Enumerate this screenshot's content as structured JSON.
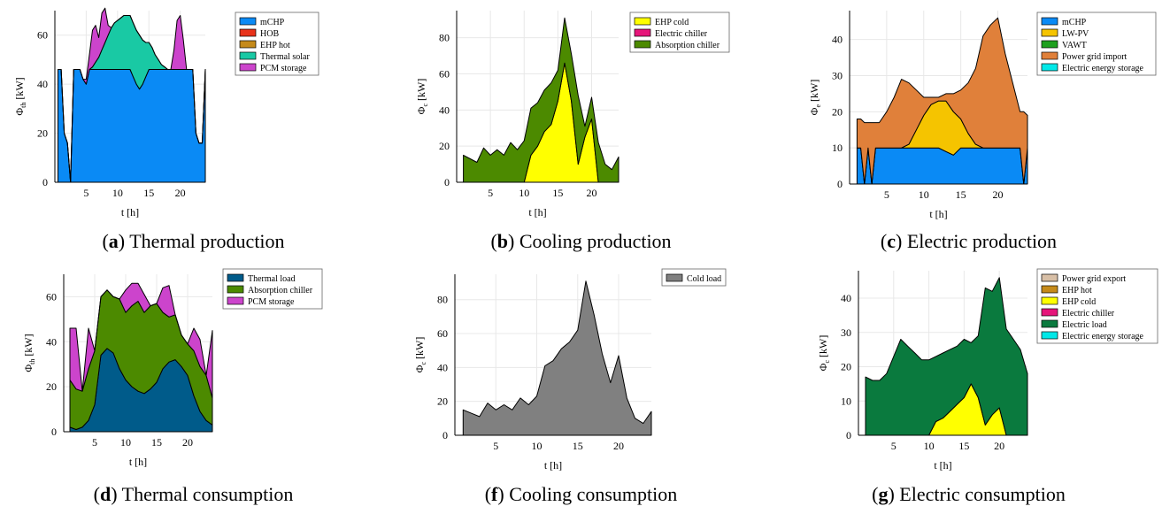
{
  "chart_data": [
    {
      "id": "a",
      "type": "area",
      "stacked": true,
      "caption_letter": "a",
      "caption_text": "Thermal production",
      "xlabel": "t [h]",
      "ylabel_main": "Φ",
      "ylabel_sub": "th",
      "ylabel_unit": "[kW]",
      "xlim": [
        0,
        24
      ],
      "ylim": [
        0,
        70
      ],
      "xticks": [
        "5",
        "10",
        "15",
        "20"
      ],
      "yticks": [
        "0",
        "20",
        "40",
        "60"
      ],
      "grid": true,
      "legend_position": "top-right",
      "x": [
        0.5,
        1,
        1.5,
        2,
        2.5,
        3,
        3.5,
        4,
        4.5,
        5,
        5.5,
        6,
        6.5,
        7,
        7.5,
        8,
        8.5,
        9,
        9.5,
        10,
        10.5,
        11,
        11.5,
        12,
        12.5,
        13,
        13.5,
        14,
        14.5,
        15,
        15.5,
        16,
        16.5,
        17,
        17.5,
        18,
        18.5,
        19,
        19.5,
        20,
        20.5,
        21,
        21.5,
        22,
        22.5,
        23,
        23.5,
        24
      ],
      "series": [
        {
          "name": "mCHP",
          "color": "#0a8af5",
          "values": [
            46,
            46,
            20,
            16,
            0,
            46,
            46,
            46,
            42,
            40,
            46,
            46,
            46,
            46,
            46,
            46,
            46,
            46,
            46,
            46,
            46,
            46,
            46,
            46,
            43,
            40,
            38,
            40,
            43,
            46,
            46,
            46,
            46,
            46,
            46,
            46,
            46,
            46,
            46,
            46,
            46,
            46,
            46,
            46,
            20,
            16,
            16,
            46
          ]
        },
        {
          "name": "HOB",
          "color": "#e8321a",
          "values": [
            0,
            0,
            0,
            0,
            0,
            0,
            0,
            0,
            0,
            0,
            0,
            0,
            0,
            0,
            0,
            0,
            0,
            0,
            0,
            0,
            0,
            0,
            0,
            0,
            0,
            0,
            0,
            0,
            0,
            0,
            0,
            0,
            0,
            0,
            0,
            0,
            0,
            0,
            0,
            0,
            0,
            0,
            0,
            0,
            0,
            0,
            0,
            0
          ]
        },
        {
          "name": "EHP hot",
          "color": "#c58a1a",
          "values": [
            0,
            0,
            0,
            0,
            0,
            0,
            0,
            0,
            0,
            0,
            0,
            0,
            0,
            0,
            0,
            0,
            0,
            0,
            0,
            0,
            0,
            0,
            0,
            0,
            0,
            0,
            0,
            0,
            0,
            0,
            0,
            0,
            0,
            0,
            0,
            0,
            0,
            0,
            0,
            0,
            0,
            0,
            0,
            0,
            0,
            0,
            0,
            0
          ]
        },
        {
          "name": "Thermal solar",
          "color": "#19c9a4",
          "values": [
            0,
            0,
            0,
            0,
            0,
            0,
            0,
            0,
            0,
            0,
            0,
            1,
            3,
            5,
            8,
            11,
            14,
            17,
            19,
            20,
            21,
            22,
            22,
            22,
            22,
            22,
            22,
            18,
            14,
            11,
            9,
            6,
            4,
            2,
            1,
            0,
            0,
            0,
            0,
            0,
            0,
            0,
            0,
            0,
            0,
            0,
            0,
            0
          ]
        },
        {
          "name": "PCM storage",
          "color": "#cc44cc",
          "values": [
            0,
            0,
            0,
            0,
            0,
            0,
            0,
            0,
            0,
            2,
            6,
            15,
            15,
            8,
            15,
            14,
            4,
            0,
            0,
            0,
            0,
            0,
            0,
            0,
            0,
            0,
            0,
            0,
            0,
            0,
            0,
            0,
            0,
            0,
            0,
            0,
            0,
            8,
            20,
            22,
            12,
            0,
            0,
            0,
            0,
            0,
            0,
            0
          ]
        }
      ]
    },
    {
      "id": "b",
      "type": "area",
      "stacked": true,
      "caption_letter": "b",
      "caption_text": "Cooling production",
      "xlabel": "t [h]",
      "ylabel_main": "Φ",
      "ylabel_sub": "c",
      "ylabel_unit": "[kW]",
      "xlim": [
        0,
        24
      ],
      "ylim": [
        0,
        95
      ],
      "xticks": [
        "5",
        "10",
        "15",
        "20"
      ],
      "yticks": [
        "0",
        "20",
        "40",
        "60",
        "80"
      ],
      "grid": true,
      "legend_position": "top-right",
      "x": [
        1,
        2,
        3,
        4,
        5,
        6,
        7,
        8,
        9,
        10,
        11,
        12,
        13,
        14,
        15,
        16,
        17,
        18,
        19,
        20,
        21,
        22,
        23,
        24
      ],
      "series": [
        {
          "name": "EHP cold",
          "color": "#ffff00",
          "values": [
            0,
            0,
            0,
            0,
            0,
            0,
            0,
            0,
            0,
            0,
            15,
            20,
            28,
            32,
            45,
            66,
            45,
            10,
            25,
            35,
            0,
            0,
            0,
            0
          ]
        },
        {
          "name": "Electric chiller",
          "color": "#e6157a",
          "values": [
            0,
            0,
            0,
            0,
            0,
            0,
            0,
            0,
            0,
            0,
            0,
            0,
            0,
            0,
            0,
            0,
            0,
            0,
            0,
            0,
            0,
            0,
            0,
            0
          ]
        },
        {
          "name": "Absorption chiller",
          "color": "#4c8a00",
          "values": [
            15,
            13,
            11,
            19,
            15,
            18,
            15,
            22,
            18,
            23,
            26,
            24,
            23,
            23,
            17,
            25,
            26,
            38,
            6,
            12,
            22,
            10,
            7,
            14
          ]
        }
      ]
    },
    {
      "id": "c",
      "type": "area",
      "stacked": true,
      "caption_letter": "c",
      "caption_text": "Electric production",
      "xlabel": "t [h]",
      "ylabel_main": "Φ",
      "ylabel_sub": "e",
      "ylabel_unit": "[kW]",
      "xlim": [
        0,
        24
      ],
      "ylim": [
        0,
        48
      ],
      "xticks": [
        "5",
        "10",
        "15",
        "20"
      ],
      "yticks": [
        "0",
        "10",
        "20",
        "30",
        "40"
      ],
      "grid": true,
      "legend_position": "top-right",
      "x": [
        1,
        1.5,
        2,
        2.5,
        3,
        3.5,
        4,
        5,
        6,
        7,
        8,
        9,
        10,
        11,
        12,
        13,
        14,
        15,
        16,
        17,
        18,
        19,
        20,
        21,
        22,
        23,
        23.5,
        24
      ],
      "series": [
        {
          "name": "mCHP",
          "color": "#0a8af5",
          "values": [
            10,
            10,
            0,
            10,
            0,
            10,
            10,
            10,
            10,
            10,
            10,
            10,
            10,
            10,
            10,
            9,
            8,
            10,
            10,
            10,
            10,
            10,
            10,
            10,
            10,
            10,
            0,
            10
          ]
        },
        {
          "name": "LW-PV",
          "color": "#f5c400",
          "values": [
            0,
            0,
            0,
            0,
            0,
            0,
            0,
            0,
            0,
            0,
            1,
            5,
            9,
            12,
            13,
            14,
            12,
            8,
            4,
            1,
            0,
            0,
            0,
            0,
            0,
            0,
            0,
            0
          ]
        },
        {
          "name": "VAWT",
          "color": "#1ea01e",
          "values": [
            0,
            0,
            0,
            0,
            0,
            0,
            0,
            0,
            0,
            0,
            0,
            0,
            0,
            0,
            0,
            0,
            0,
            0,
            0,
            0,
            0,
            0,
            0,
            0,
            0,
            0,
            0,
            0
          ]
        },
        {
          "name": "Power grid import",
          "color": "#e0803a",
          "values": [
            8,
            8,
            17,
            7,
            17,
            7,
            7,
            10,
            14,
            19,
            17,
            11,
            5,
            2,
            1,
            2,
            5,
            8,
            14,
            21,
            31,
            34,
            36,
            26,
            18,
            10,
            20,
            9
          ]
        },
        {
          "name": "Electric energy storage",
          "color": "#00e8e8",
          "values": [
            0,
            0,
            0,
            0,
            0,
            0,
            0,
            0,
            0,
            0,
            0,
            0,
            0,
            0,
            0,
            0,
            0,
            0,
            0,
            0,
            0,
            0,
            0,
            0,
            0,
            0,
            0,
            0
          ]
        }
      ]
    },
    {
      "id": "d",
      "type": "area",
      "stacked": true,
      "caption_letter": "d",
      "caption_text": "Thermal consumption",
      "xlabel": "t [h]",
      "ylabel_main": "Φ",
      "ylabel_sub": "th",
      "ylabel_unit": "[kW]",
      "xlim": [
        0,
        24
      ],
      "ylim": [
        0,
        70
      ],
      "xticks": [
        "5",
        "10",
        "15",
        "20"
      ],
      "yticks": [
        "0",
        "20",
        "40",
        "60"
      ],
      "grid": true,
      "legend_position": "top-right",
      "x": [
        1,
        2,
        3,
        4,
        5,
        6,
        7,
        8,
        9,
        10,
        11,
        12,
        13,
        14,
        15,
        16,
        17,
        18,
        19,
        20,
        21,
        22,
        23,
        24
      ],
      "series": [
        {
          "name": "Thermal load",
          "color": "#005b8a",
          "values": [
            2,
            1,
            2,
            5,
            12,
            34,
            37,
            35,
            28,
            23,
            20,
            18,
            17,
            19,
            22,
            28,
            31,
            32,
            29,
            25,
            16,
            9,
            5,
            3
          ]
        },
        {
          "name": "Absorption chiller",
          "color": "#4c8a00",
          "values": [
            21,
            18,
            16,
            23,
            24,
            26,
            26,
            25,
            31,
            30,
            36,
            40,
            36,
            37,
            35,
            25,
            20,
            20,
            14,
            14,
            20,
            20,
            20,
            12
          ]
        },
        {
          "name": "PCM storage",
          "color": "#cc44cc",
          "values": [
            23,
            27,
            0,
            18,
            0,
            0,
            0,
            0,
            0,
            10,
            10,
            8,
            8,
            0,
            0,
            11,
            14,
            0,
            0,
            0,
            10,
            12,
            0,
            30
          ]
        }
      ]
    },
    {
      "id": "f",
      "type": "area",
      "stacked": false,
      "caption_letter": "f",
      "caption_text": "Cooling consumption",
      "xlabel": "t [h]",
      "ylabel_main": "Φ",
      "ylabel_sub": "c",
      "ylabel_unit": "[kW]",
      "xlim": [
        0,
        24
      ],
      "ylim": [
        0,
        95
      ],
      "xticks": [
        "5",
        "10",
        "15",
        "20"
      ],
      "yticks": [
        "0",
        "20",
        "40",
        "60",
        "80"
      ],
      "grid": true,
      "legend_position": "top-right",
      "x": [
        1,
        2,
        3,
        4,
        5,
        6,
        7,
        8,
        9,
        10,
        11,
        12,
        13,
        14,
        15,
        16,
        17,
        18,
        19,
        20,
        21,
        22,
        23,
        24
      ],
      "series": [
        {
          "name": "Cold load",
          "color": "#808080",
          "values": [
            15,
            13,
            11,
            19,
            15,
            18,
            15,
            22,
            18,
            23,
            41,
            44,
            51,
            55,
            62,
            91,
            71,
            48,
            31,
            47,
            22,
            10,
            7,
            14
          ]
        }
      ]
    },
    {
      "id": "g",
      "type": "area",
      "stacked": true,
      "caption_letter": "g",
      "caption_text": "Electric consumption",
      "xlabel": "t [h]",
      "ylabel_main": "Φ",
      "ylabel_sub": "c",
      "ylabel_unit": "[kW]",
      "xlim": [
        0,
        24
      ],
      "ylim": [
        0,
        48
      ],
      "xticks": [
        "5",
        "10",
        "15",
        "20"
      ],
      "yticks": [
        "0",
        "10",
        "20",
        "30",
        "40"
      ],
      "grid": true,
      "legend_position": "top-right",
      "x": [
        1,
        2,
        3,
        4,
        5,
        6,
        7,
        8,
        9,
        10,
        11,
        12,
        13,
        14,
        15,
        16,
        17,
        18,
        19,
        20,
        21,
        22,
        23,
        24
      ],
      "series": [
        {
          "name": "Power grid export",
          "color": "#d8bfa6",
          "values": [
            0,
            0,
            0,
            0,
            0,
            0,
            0,
            0,
            0,
            0,
            0,
            0,
            0,
            0,
            0,
            0,
            0,
            0,
            0,
            0,
            0,
            0,
            0,
            0
          ]
        },
        {
          "name": "EHP hot",
          "color": "#c58a1a",
          "values": [
            0,
            0,
            0,
            0,
            0,
            0,
            0,
            0,
            0,
            0,
            0,
            0,
            0,
            0,
            0,
            0,
            0,
            0,
            0,
            0,
            0,
            0,
            0,
            0
          ]
        },
        {
          "name": "EHP cold",
          "color": "#ffff00",
          "values": [
            0,
            0,
            0,
            0,
            0,
            0,
            0,
            0,
            0,
            0,
            4,
            5,
            7,
            9,
            11,
            15,
            11,
            3,
            6,
            8,
            0,
            0,
            0,
            0
          ]
        },
        {
          "name": "Electric chiller",
          "color": "#e6157a",
          "values": [
            0,
            0,
            0,
            0,
            0,
            0,
            0,
            0,
            0,
            0,
            0,
            0,
            0,
            0,
            0,
            0,
            0,
            0,
            0,
            0,
            0,
            0,
            0,
            0
          ]
        },
        {
          "name": "Electric load",
          "color": "#0a7a3e",
          "values": [
            17,
            16,
            16,
            18,
            23,
            28,
            26,
            24,
            22,
            22,
            19,
            19,
            18,
            17,
            17,
            12,
            18,
            40,
            36,
            38,
            31,
            28,
            25,
            18
          ]
        },
        {
          "name": "Electric energy storage",
          "color": "#00e8e8",
          "values": [
            0,
            0,
            0,
            0,
            0,
            0,
            0,
            0,
            0,
            0,
            0,
            0,
            0,
            0,
            0,
            0,
            0,
            0,
            0,
            0,
            0,
            0,
            0,
            0
          ]
        }
      ]
    }
  ]
}
